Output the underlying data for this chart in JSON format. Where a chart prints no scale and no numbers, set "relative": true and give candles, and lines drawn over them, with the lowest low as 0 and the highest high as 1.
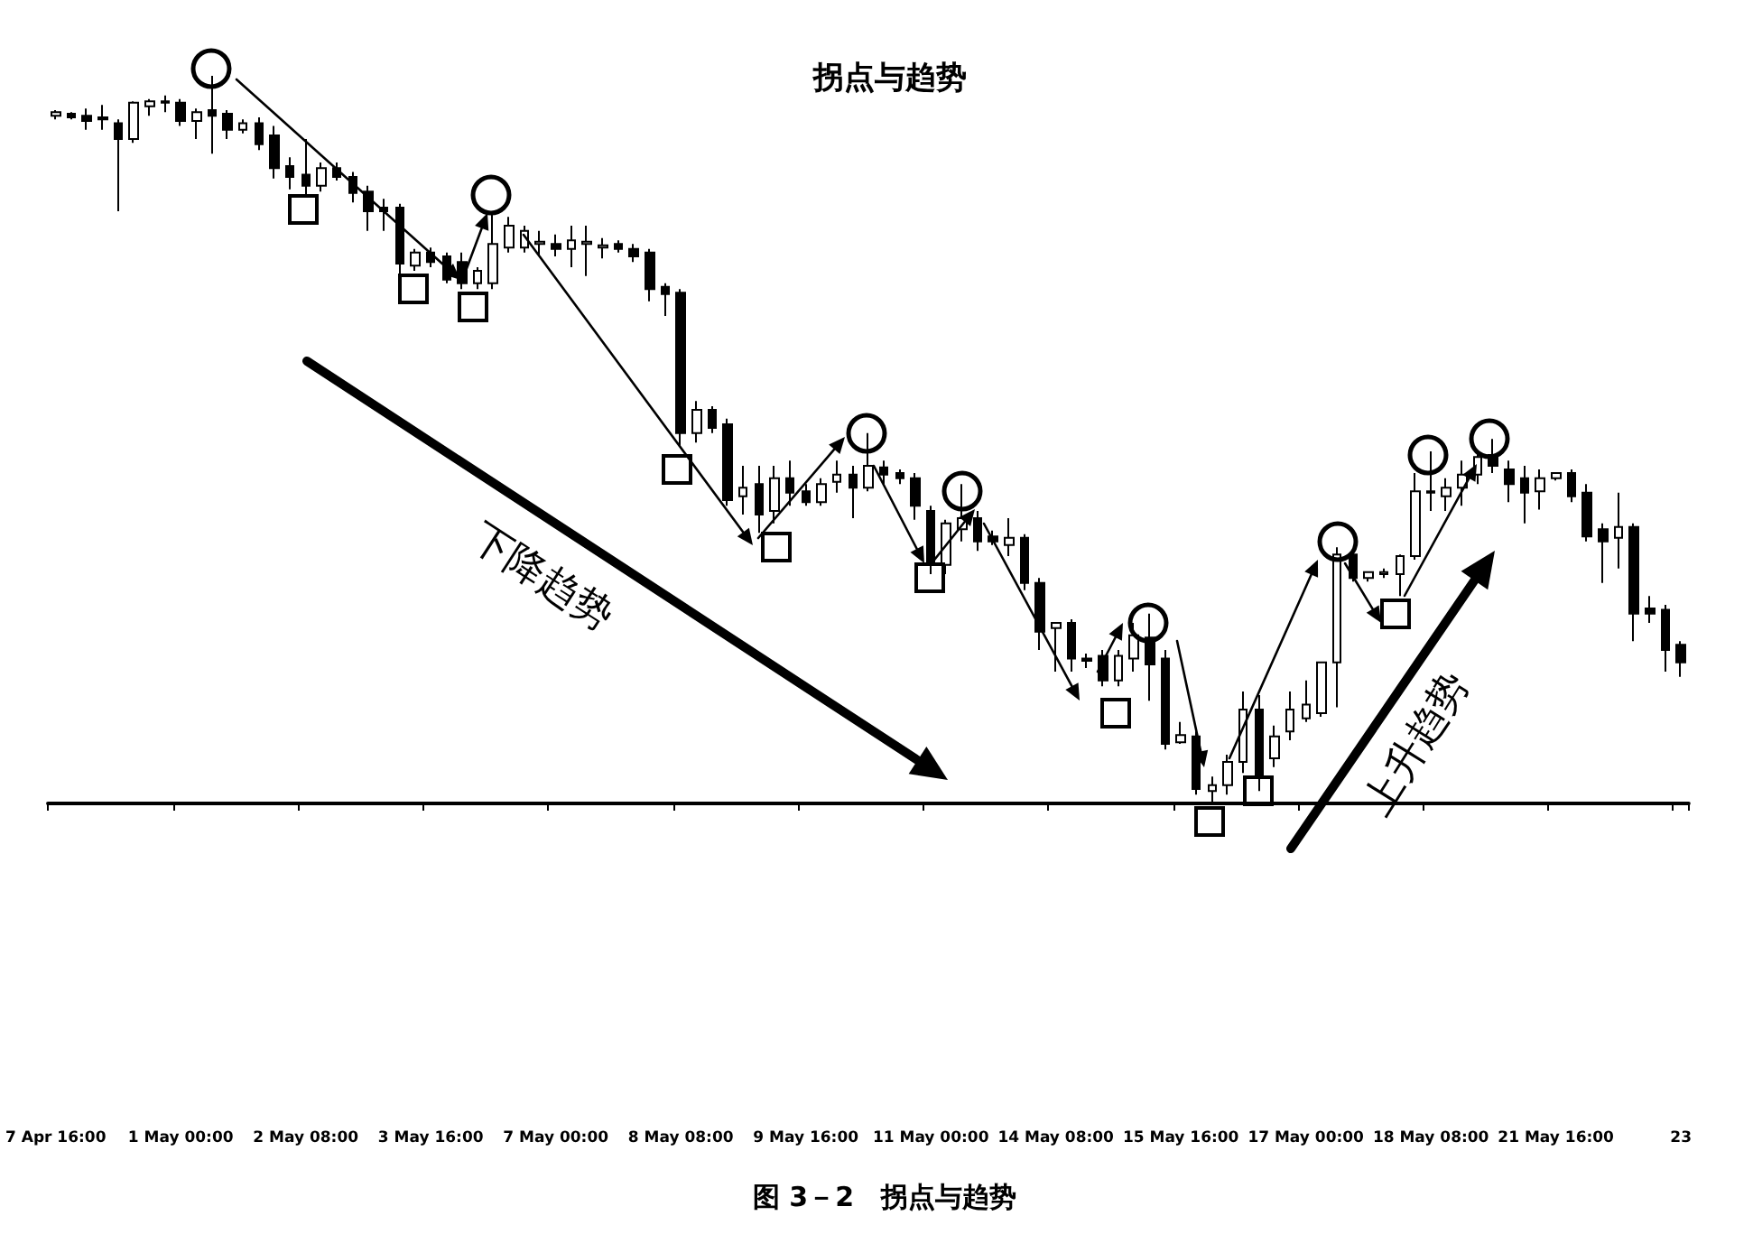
{
  "chart_data": {
    "type": "candlestick",
    "title": "拐点与趋势",
    "relative": true,
    "color": "#000000",
    "annotations": [
      "下降趋势",
      "上升趋势",
      "图 3－2　拐点与趋势"
    ],
    "categories": [
      "7 Apr 16:00",
      null,
      null,
      null,
      null,
      null,
      null,
      null,
      "1 May 00:00",
      null,
      null,
      null,
      null,
      null,
      null,
      null,
      "2 May 08:00",
      null,
      null,
      null,
      null,
      null,
      null,
      null,
      "3 May 16:00",
      null,
      null,
      null,
      null,
      null,
      null,
      null,
      "7 May 00:00",
      null,
      null,
      null,
      null,
      null,
      null,
      null,
      "8 May 08:00",
      null,
      null,
      null,
      null,
      null,
      null,
      null,
      "9 May 16:00",
      null,
      null,
      null,
      null,
      null,
      null,
      null,
      "11 May 00:00",
      null,
      null,
      null,
      null,
      null,
      null,
      null,
      "14 May 08:00",
      null,
      null,
      null,
      null,
      null,
      null,
      null,
      "15 May 16:00",
      null,
      null,
      null,
      null,
      null,
      null,
      null,
      "17 May 00:00",
      null,
      null,
      null,
      null,
      null,
      null,
      null,
      "18 May 08:00",
      null,
      null,
      null,
      null,
      null,
      null,
      null,
      "21 May 16:00",
      null,
      null,
      null,
      null,
      null,
      null,
      null,
      "23"
    ],
    "ohlc": [
      [
        0.945,
        0.953,
        0.94,
        0.95
      ],
      [
        0.948,
        0.95,
        0.94,
        0.943
      ],
      [
        0.945,
        0.955,
        0.926,
        0.938
      ],
      [
        0.943,
        0.96,
        0.926,
        0.94
      ],
      [
        0.935,
        0.94,
        0.814,
        0.913
      ],
      [
        0.913,
        0.965,
        0.908,
        0.963
      ],
      [
        0.958,
        0.968,
        0.945,
        0.965
      ],
      [
        0.963,
        0.973,
        0.95,
        0.965
      ],
      [
        0.963,
        0.968,
        0.931,
        0.938
      ],
      [
        0.938,
        0.955,
        0.913,
        0.95
      ],
      [
        0.953,
        1.0,
        0.893,
        0.945
      ],
      [
        0.948,
        0.953,
        0.913,
        0.926
      ],
      [
        0.926,
        0.94,
        0.921,
        0.935
      ],
      [
        0.935,
        0.943,
        0.898,
        0.906
      ],
      [
        0.918,
        0.931,
        0.859,
        0.873
      ],
      [
        0.876,
        0.888,
        0.844,
        0.861
      ],
      [
        0.864,
        0.913,
        0.836,
        0.849
      ],
      [
        0.849,
        0.881,
        0.841,
        0.873
      ],
      [
        0.873,
        0.881,
        0.856,
        0.861
      ],
      [
        0.861,
        0.868,
        0.826,
        0.839
      ],
      [
        0.841,
        0.849,
        0.787,
        0.814
      ],
      [
        0.819,
        0.831,
        0.787,
        0.814
      ],
      [
        0.819,
        0.824,
        0.727,
        0.742
      ],
      [
        0.739,
        0.762,
        0.732,
        0.757
      ],
      [
        0.757,
        0.764,
        0.737,
        0.744
      ],
      [
        0.752,
        0.757,
        0.715,
        0.72
      ],
      [
        0.744,
        0.757,
        0.707,
        0.715
      ],
      [
        0.715,
        0.737,
        0.707,
        0.732
      ],
      [
        0.715,
        0.814,
        0.707,
        0.769
      ],
      [
        0.764,
        0.806,
        0.757,
        0.794
      ],
      [
        0.764,
        0.794,
        0.757,
        0.787
      ],
      [
        0.769,
        0.787,
        0.752,
        0.772
      ],
      [
        0.769,
        0.782,
        0.752,
        0.762
      ],
      [
        0.762,
        0.794,
        0.737,
        0.774
      ],
      [
        0.769,
        0.794,
        0.725,
        0.772
      ],
      [
        0.764,
        0.777,
        0.749,
        0.767
      ],
      [
        0.769,
        0.774,
        0.757,
        0.762
      ],
      [
        0.762,
        0.769,
        0.744,
        0.752
      ],
      [
        0.757,
        0.762,
        0.69,
        0.707
      ],
      [
        0.71,
        0.715,
        0.67,
        0.7
      ],
      [
        0.702,
        0.707,
        0.491,
        0.509
      ],
      [
        0.509,
        0.553,
        0.496,
        0.541
      ],
      [
        0.541,
        0.546,
        0.509,
        0.516
      ],
      [
        0.521,
        0.529,
        0.409,
        0.417
      ],
      [
        0.422,
        0.464,
        0.397,
        0.434
      ],
      [
        0.439,
        0.464,
        0.372,
        0.397
      ],
      [
        0.402,
        0.464,
        0.385,
        0.447
      ],
      [
        0.447,
        0.471,
        0.409,
        0.427
      ],
      [
        0.429,
        0.439,
        0.409,
        0.414
      ],
      [
        0.414,
        0.447,
        0.409,
        0.439
      ],
      [
        0.442,
        0.471,
        0.427,
        0.452
      ],
      [
        0.452,
        0.464,
        0.392,
        0.434
      ],
      [
        0.434,
        0.509,
        0.429,
        0.464
      ],
      [
        0.462,
        0.471,
        0.439,
        0.452
      ],
      [
        0.454,
        0.459,
        0.439,
        0.447
      ],
      [
        0.447,
        0.454,
        0.39,
        0.409
      ],
      [
        0.402,
        0.409,
        0.315,
        0.33
      ],
      [
        0.328,
        0.39,
        0.315,
        0.385
      ],
      [
        0.377,
        0.439,
        0.36,
        0.392
      ],
      [
        0.392,
        0.402,
        0.347,
        0.36
      ],
      [
        0.367,
        0.375,
        0.355,
        0.36
      ],
      [
        0.355,
        0.392,
        0.34,
        0.365
      ],
      [
        0.365,
        0.37,
        0.293,
        0.303
      ],
      [
        0.303,
        0.31,
        0.211,
        0.236
      ],
      [
        0.241,
        0.248,
        0.181,
        0.248
      ],
      [
        0.248,
        0.253,
        0.181,
        0.199
      ],
      [
        0.199,
        0.206,
        0.186,
        0.196
      ],
      [
        0.203,
        0.211,
        0.161,
        0.169
      ],
      [
        0.169,
        0.211,
        0.161,
        0.203
      ],
      [
        0.199,
        0.248,
        0.181,
        0.231
      ],
      [
        0.228,
        0.261,
        0.141,
        0.191
      ],
      [
        0.199,
        0.211,
        0.074,
        0.082
      ],
      [
        0.084,
        0.112,
        0.082,
        0.094
      ],
      [
        0.092,
        0.099,
        0.012,
        0.02
      ],
      [
        0.017,
        0.037,
        0.0,
        0.025
      ],
      [
        0.025,
        0.067,
        0.012,
        0.057
      ],
      [
        0.057,
        0.154,
        0.042,
        0.129
      ],
      [
        0.129,
        0.149,
        0.017,
        0.037
      ],
      [
        0.062,
        0.107,
        0.05,
        0.092
      ],
      [
        0.099,
        0.154,
        0.087,
        0.129
      ],
      [
        0.117,
        0.169,
        0.112,
        0.136
      ],
      [
        0.124,
        0.194,
        0.119,
        0.194
      ],
      [
        0.194,
        0.352,
        0.132,
        0.342
      ],
      [
        0.342,
        0.347,
        0.305,
        0.31
      ],
      [
        0.31,
        0.318,
        0.305,
        0.318
      ],
      [
        0.315,
        0.323,
        0.31,
        0.318
      ],
      [
        0.315,
        0.342,
        0.285,
        0.34
      ],
      [
        0.34,
        0.454,
        0.335,
        0.429
      ],
      [
        0.427,
        0.484,
        0.402,
        0.429
      ],
      [
        0.422,
        0.447,
        0.402,
        0.434
      ],
      [
        0.434,
        0.471,
        0.409,
        0.452
      ],
      [
        0.452,
        0.484,
        0.439,
        0.476
      ],
      [
        0.479,
        0.501,
        0.454,
        0.464
      ],
      [
        0.459,
        0.471,
        0.414,
        0.439
      ],
      [
        0.447,
        0.464,
        0.385,
        0.427
      ],
      [
        0.429,
        0.459,
        0.404,
        0.447
      ],
      [
        0.447,
        0.454,
        0.444,
        0.454
      ],
      [
        0.454,
        0.459,
        0.414,
        0.422
      ],
      [
        0.427,
        0.439,
        0.36,
        0.367
      ],
      [
        0.377,
        0.385,
        0.303,
        0.36
      ],
      [
        0.365,
        0.427,
        0.323,
        0.38
      ],
      [
        0.38,
        0.385,
        0.223,
        0.261
      ],
      [
        0.268,
        0.285,
        0.248,
        0.261
      ],
      [
        0.266,
        0.273,
        0.181,
        0.211
      ],
      [
        0.218,
        0.223,
        0.174,
        0.194
      ]
    ]
  }
}
